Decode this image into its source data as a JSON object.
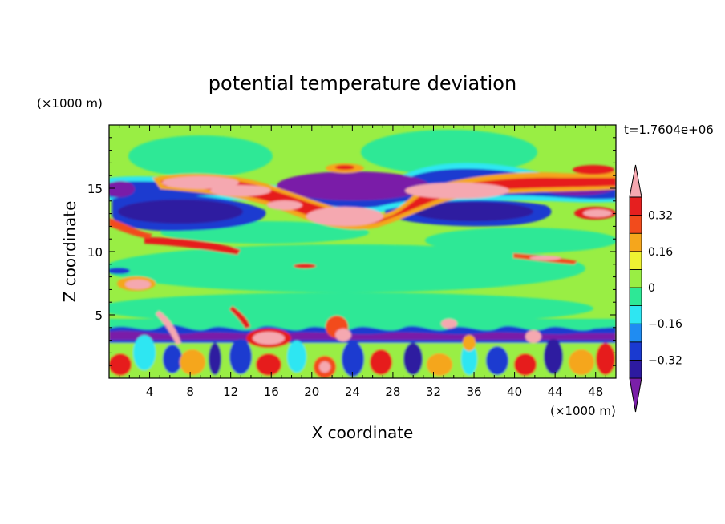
{
  "chart_data": {
    "type": "heatmap",
    "title": "potential temperature deviation",
    "time_label": "t=1.7604e+06",
    "xlabel": "X coordinate",
    "ylabel": "Z coordinate",
    "x_unit": "(×1000 m)",
    "y_unit": "(×1000 m)",
    "xlim": [
      0,
      50
    ],
    "ylim": [
      0,
      20
    ],
    "x_ticks": [
      4,
      8,
      12,
      16,
      20,
      24,
      28,
      32,
      36,
      40,
      44,
      48
    ],
    "y_ticks": [
      5,
      10,
      15
    ],
    "colorbar": {
      "levels": [
        -0.4,
        -0.32,
        -0.24,
        -0.16,
        -0.08,
        0,
        0.08,
        0.16,
        0.24,
        0.32,
        0.4
      ],
      "tick_labels": [
        "0.32",
        "0.16",
        "0",
        "−0.16",
        "−0.32"
      ],
      "tick_values": [
        0.32,
        0.16,
        0,
        -0.16,
        -0.32
      ],
      "colors": [
        "#7a1fa8",
        "#2d1aa0",
        "#1a3ad0",
        "#1f8cf2",
        "#2ee6f2",
        "#2de896",
        "#99ee44",
        "#eef232",
        "#f5a61c",
        "#f24b1c",
        "#e61f1f",
        "#f5a8b0"
      ]
    }
  }
}
